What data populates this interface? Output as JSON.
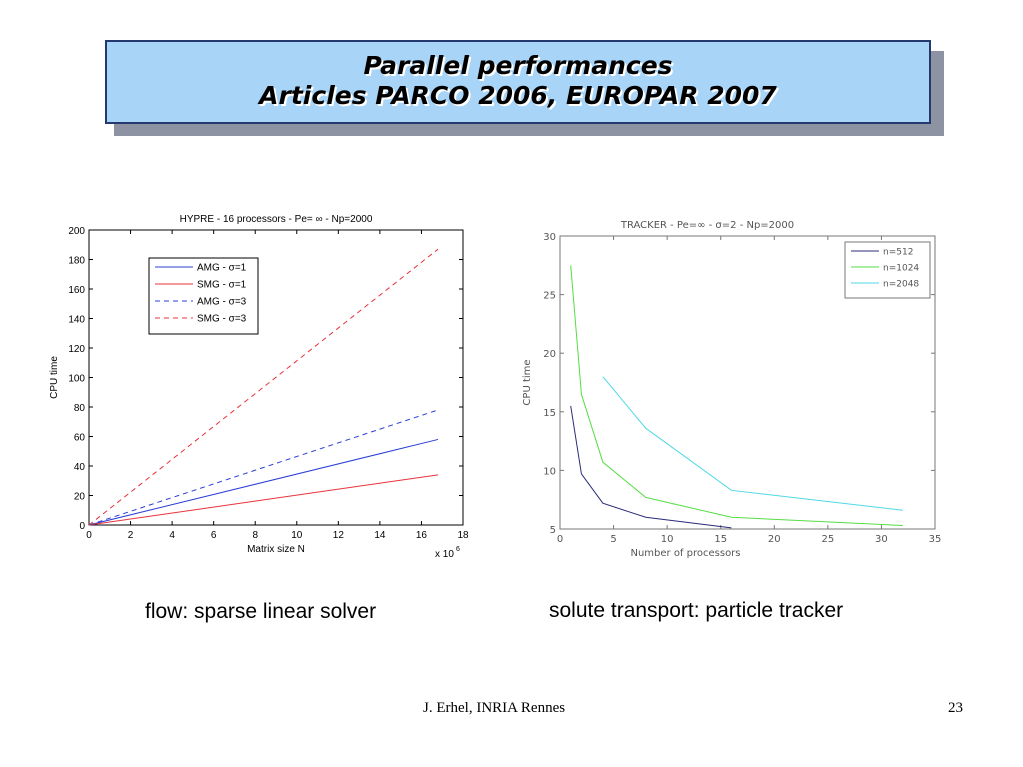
{
  "slide": {
    "title_line_1": "Parallel performances",
    "title_line_2": "Articles PARCO 2006, EUROPAR 2007",
    "title_box_color": "#a8d4f7",
    "footer_author": "J. Erhel, INRIA Rennes",
    "page_number": "23"
  },
  "captions": {
    "left": "flow: sparse linear solver",
    "right": "solute transport: particle tracker"
  },
  "chart_data": [
    {
      "type": "line",
      "title": "HYPRE - 16 processors - Pe= ∞ - Np=2000",
      "xlabel": "Matrix size N",
      "ylabel": "CPU time",
      "x_multiplier": "x 10",
      "x_multiplier_exp": "6",
      "xlim": [
        0,
        18
      ],
      "ylim": [
        0,
        200
      ],
      "xticks": [
        0,
        2,
        4,
        6,
        8,
        10,
        12,
        14,
        16,
        18
      ],
      "yticks": [
        0,
        20,
        40,
        60,
        80,
        100,
        120,
        140,
        160,
        180,
        200
      ],
      "grid": false,
      "legend_position": "top-left",
      "series": [
        {
          "name": "AMG -  σ=1",
          "color": "#2b3fd6",
          "dash": false,
          "x": [
            0,
            16.8
          ],
          "y": [
            0,
            58
          ]
        },
        {
          "name": "SMG -  σ=1",
          "color": "#e8323a",
          "dash": false,
          "x": [
            0,
            16.8
          ],
          "y": [
            0,
            34
          ]
        },
        {
          "name": "AMG -  σ=3",
          "color": "#2b3fd6",
          "dash": true,
          "x": [
            0,
            16.8
          ],
          "y": [
            0,
            78
          ]
        },
        {
          "name": "SMG -  σ=3",
          "color": "#e8323a",
          "dash": true,
          "x": [
            0,
            16.8
          ],
          "y": [
            0,
            187
          ]
        }
      ]
    },
    {
      "type": "line",
      "title": "TRACKER - Pe=∞ - σ=2 - Np=2000",
      "xlabel": "Number of processors",
      "ylabel": "CPU time",
      "xlim": [
        0,
        35
      ],
      "ylim": [
        5,
        30
      ],
      "xticks": [
        0,
        5,
        10,
        15,
        20,
        25,
        30,
        35
      ],
      "yticks": [
        5,
        10,
        15,
        20,
        25,
        30
      ],
      "grid": false,
      "legend_position": "top-right",
      "series": [
        {
          "name": "n=512",
          "color": "#2a2a7a",
          "dash": false,
          "x": [
            1,
            2,
            4,
            8,
            16
          ],
          "y": [
            15.5,
            9.7,
            7.2,
            6.0,
            5.1
          ]
        },
        {
          "name": "n=1024",
          "color": "#55dd44",
          "dash": false,
          "x": [
            1,
            2,
            4,
            8,
            16,
            32
          ],
          "y": [
            27.5,
            16.5,
            10.7,
            7.7,
            6.0,
            5.3
          ]
        },
        {
          "name": "n=2048",
          "color": "#4fd8e6",
          "dash": false,
          "x": [
            4,
            8,
            16,
            32
          ],
          "y": [
            18.0,
            13.6,
            8.3,
            6.6
          ]
        }
      ]
    }
  ]
}
